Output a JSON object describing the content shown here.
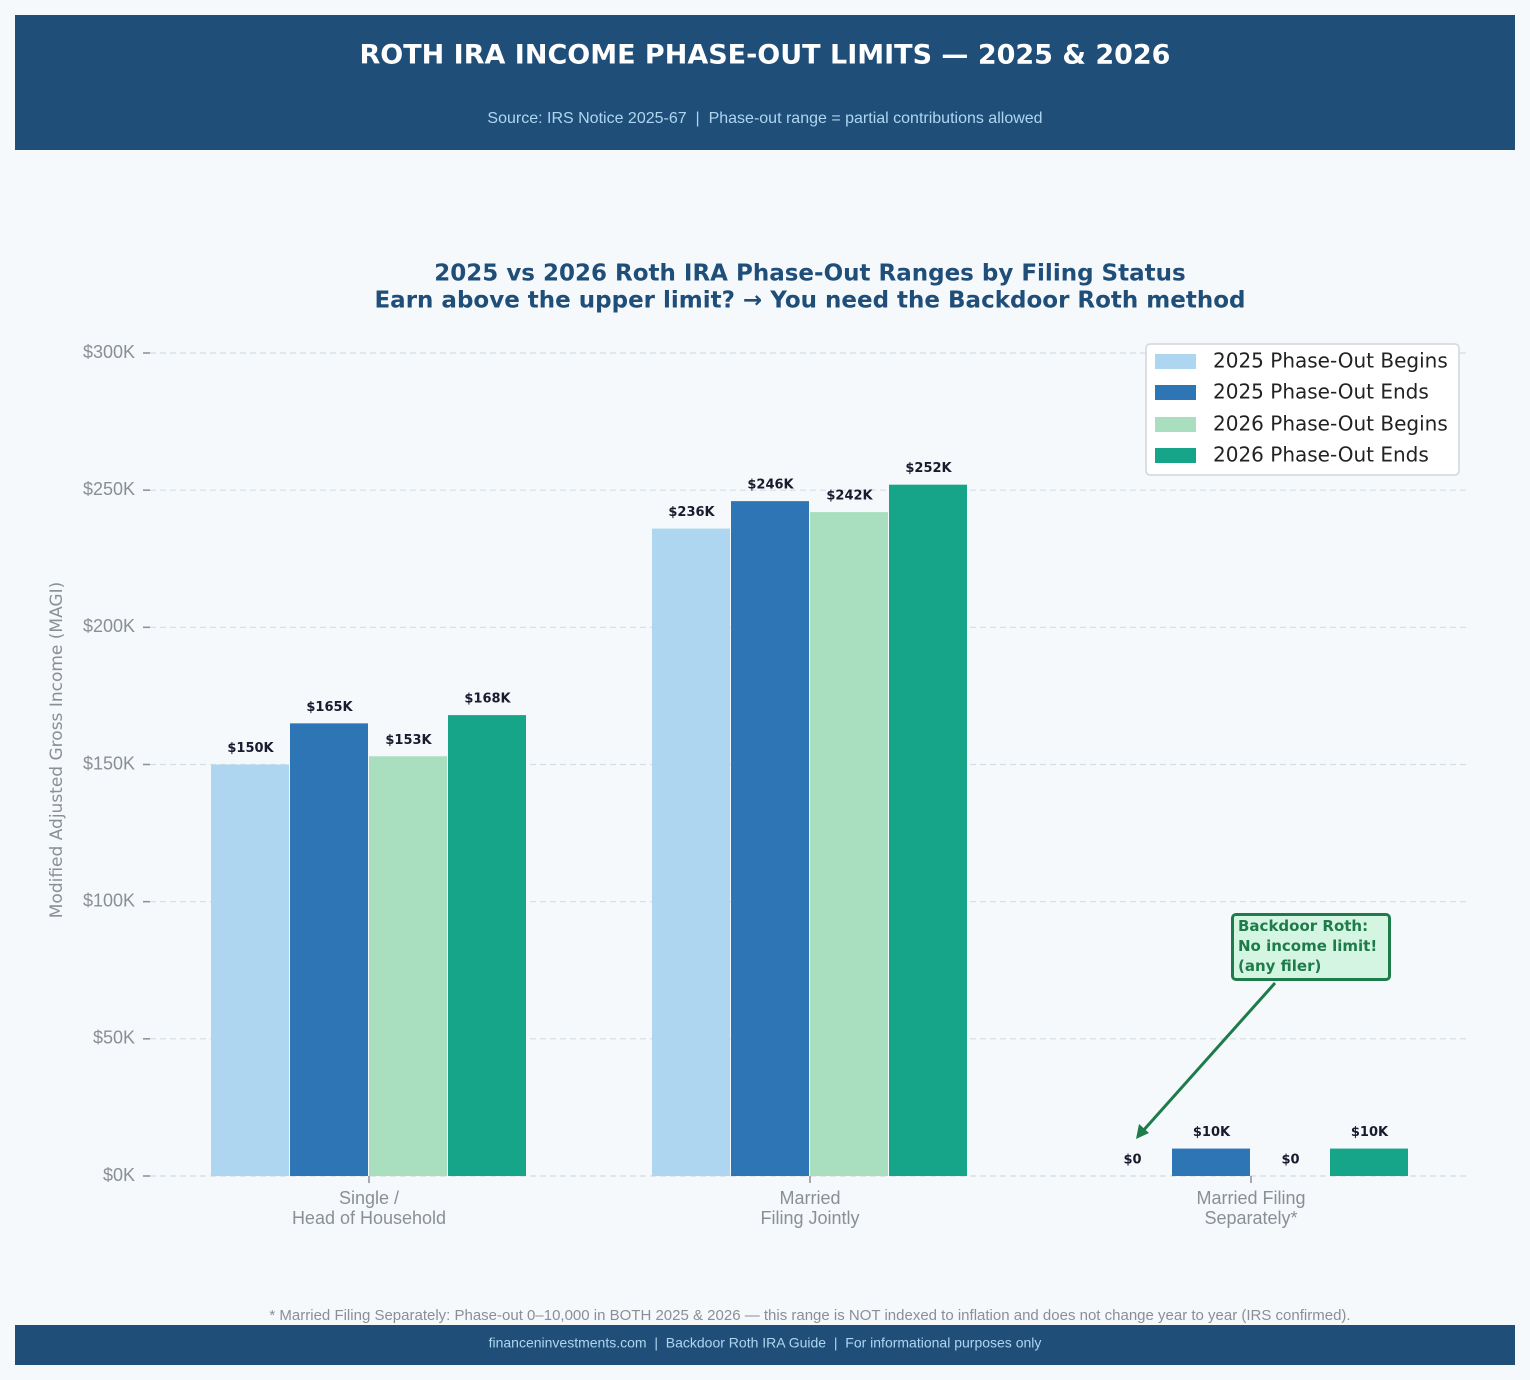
{
  "header": {
    "title": "ROTH IRA INCOME PHASE-OUT LIMITS — 2025 & 2026",
    "subtitle": "Source: IRS Notice 2025-67  |  Phase-out range = partial contributions allowed"
  },
  "chart_data": {
    "type": "bar",
    "title": "2025 vs 2026 Roth IRA Phase-Out Ranges by Filing Status",
    "subtitle": "Earn above the upper limit? → You need the Backdoor Roth method",
    "y_label": "Modified Adjusted Gross Income (MAGI)",
    "categories": [
      "Single /\nHead of Household",
      "Married\nFiling Jointly",
      "Married Filing\nSeparately*"
    ],
    "series": [
      {
        "name": "2025 Phase-Out Begins",
        "color": "#aed6f1",
        "values": [
          150000,
          236000,
          0
        ],
        "value_labels": [
          "$150K",
          "$236K",
          "$0"
        ]
      },
      {
        "name": "2025 Phase-Out Ends",
        "color": "#2e75b6",
        "values": [
          165000,
          246000,
          10000
        ],
        "value_labels": [
          "$165K",
          "$246K",
          "$10K"
        ]
      },
      {
        "name": "2026 Phase-Out Begins",
        "color": "#a9dfbf",
        "values": [
          153000,
          242000,
          0
        ],
        "value_labels": [
          "$153K",
          "$242K",
          "$0"
        ]
      },
      {
        "name": "2026 Phase-Out Ends",
        "color": "#17a589",
        "values": [
          168000,
          252000,
          10000
        ],
        "value_labels": [
          "$168K",
          "$252K",
          "$10K"
        ]
      }
    ],
    "ylim": [
      0,
      300000
    ],
    "yticks": [
      {
        "value": 0,
        "label": "$0K"
      },
      {
        "value": 50000,
        "label": "$50K"
      },
      {
        "value": 100000,
        "label": "$100K"
      },
      {
        "value": 150000,
        "label": "$150K"
      },
      {
        "value": 200000,
        "label": "$200K"
      },
      {
        "value": 250000,
        "label": "$250K"
      },
      {
        "value": 300000,
        "label": "$300K"
      }
    ],
    "grid": true,
    "legend": "upper right",
    "annotation": "Backdoor Roth:\nNo income limit!\n(any filer)"
  },
  "footnote": "* Married Filing Separately: Phase-out 0–10,000 in BOTH 2025 & 2026 — this range is NOT indexed to inflation and does not change year to year (IRS confirmed).",
  "footer": "financeninvestments.com  |  Backdoor Roth IRA Guide  |  For informational purposes only"
}
